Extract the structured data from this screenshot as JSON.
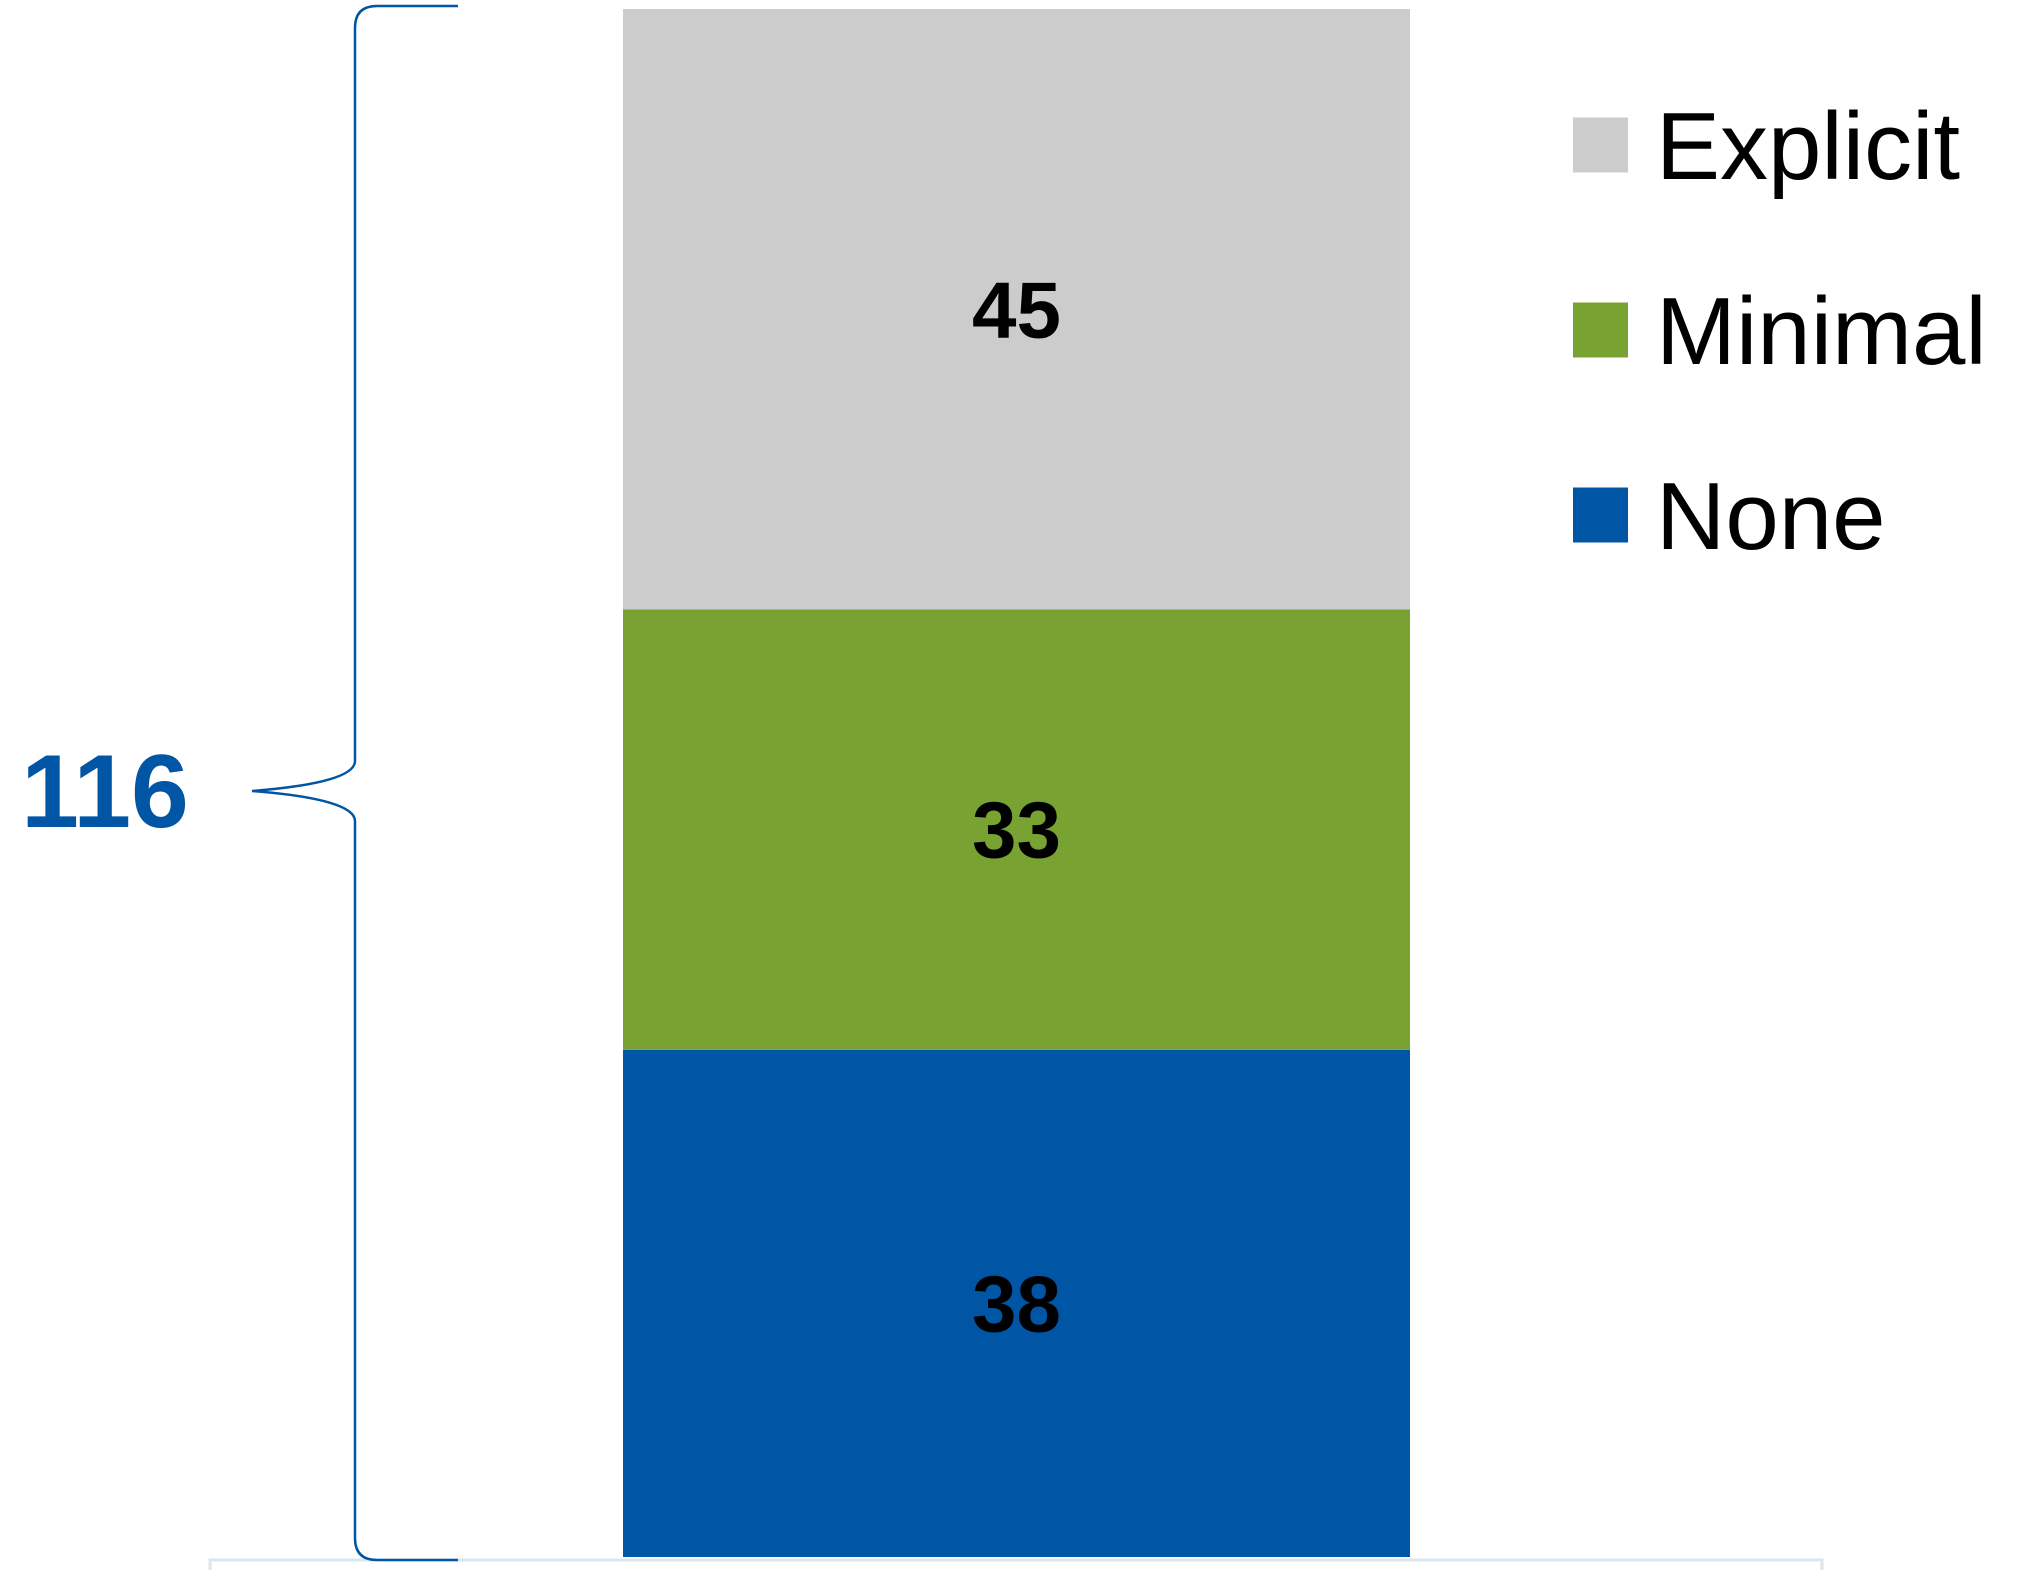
{
  "chart_data": {
    "type": "bar",
    "stacked": true,
    "categories": [
      ""
    ],
    "series": [
      {
        "name": "None",
        "values": [
          38
        ],
        "color": "#0055A4"
      },
      {
        "name": "Minimal",
        "values": [
          33
        ],
        "color": "#78A232"
      },
      {
        "name": "Explicit",
        "values": [
          45
        ],
        "color": "#CCCCCC"
      }
    ],
    "total": 116,
    "total_color": "#0055A4",
    "legend_order": [
      "Explicit",
      "Minimal",
      "None"
    ],
    "legend_position": "top-right",
    "ylim": [
      0,
      116
    ],
    "grid": false
  }
}
